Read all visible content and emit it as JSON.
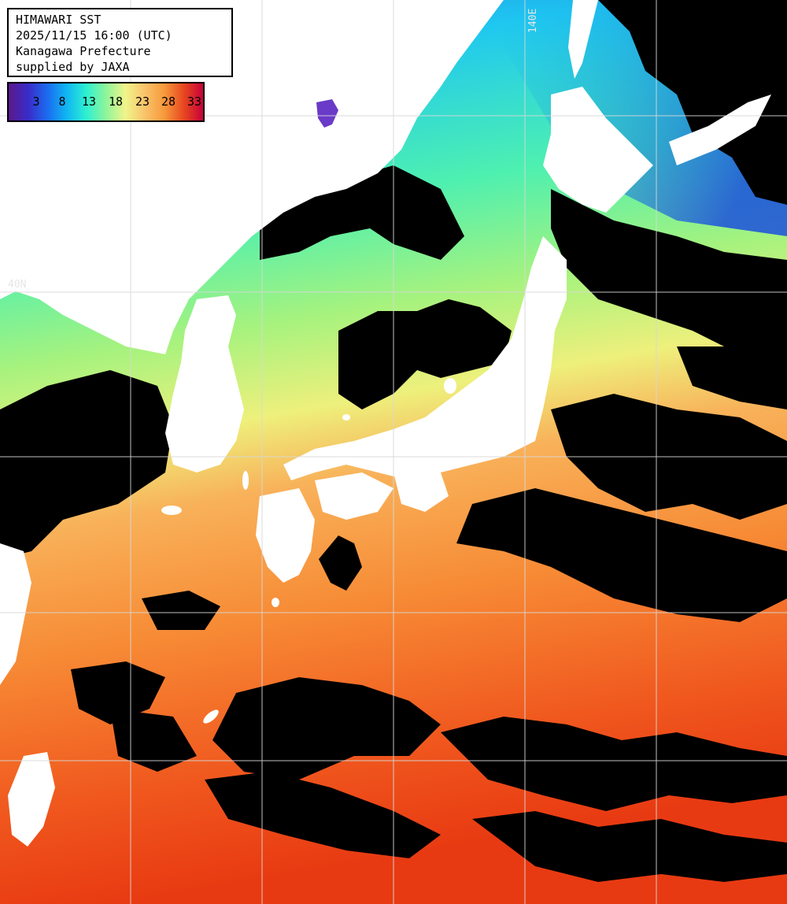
{
  "header": {
    "title": "HIMAWARI SST",
    "timestamp": "2025/11/15 16:00 (UTC)",
    "region": "Kanagawa Prefecture",
    "credit": "supplied by JAXA"
  },
  "legend": {
    "labels": [
      "3",
      "8",
      "13",
      "18",
      "23",
      "28",
      "33"
    ],
    "gradient_colors": [
      "#5a1a8c",
      "#3a2cc8",
      "#1b6cf0",
      "#10b7f2",
      "#2ef0d0",
      "#8ef59a",
      "#f0f58a",
      "#f9c36a",
      "#f79a3c",
      "#e74820",
      "#c8003a"
    ]
  },
  "grid_labels": {
    "longitude": "140E",
    "latitude": "40N"
  },
  "colors": {
    "land": "#ffffff",
    "cloud_mask": "#000000",
    "grid_line": "#d8d8d8"
  }
}
